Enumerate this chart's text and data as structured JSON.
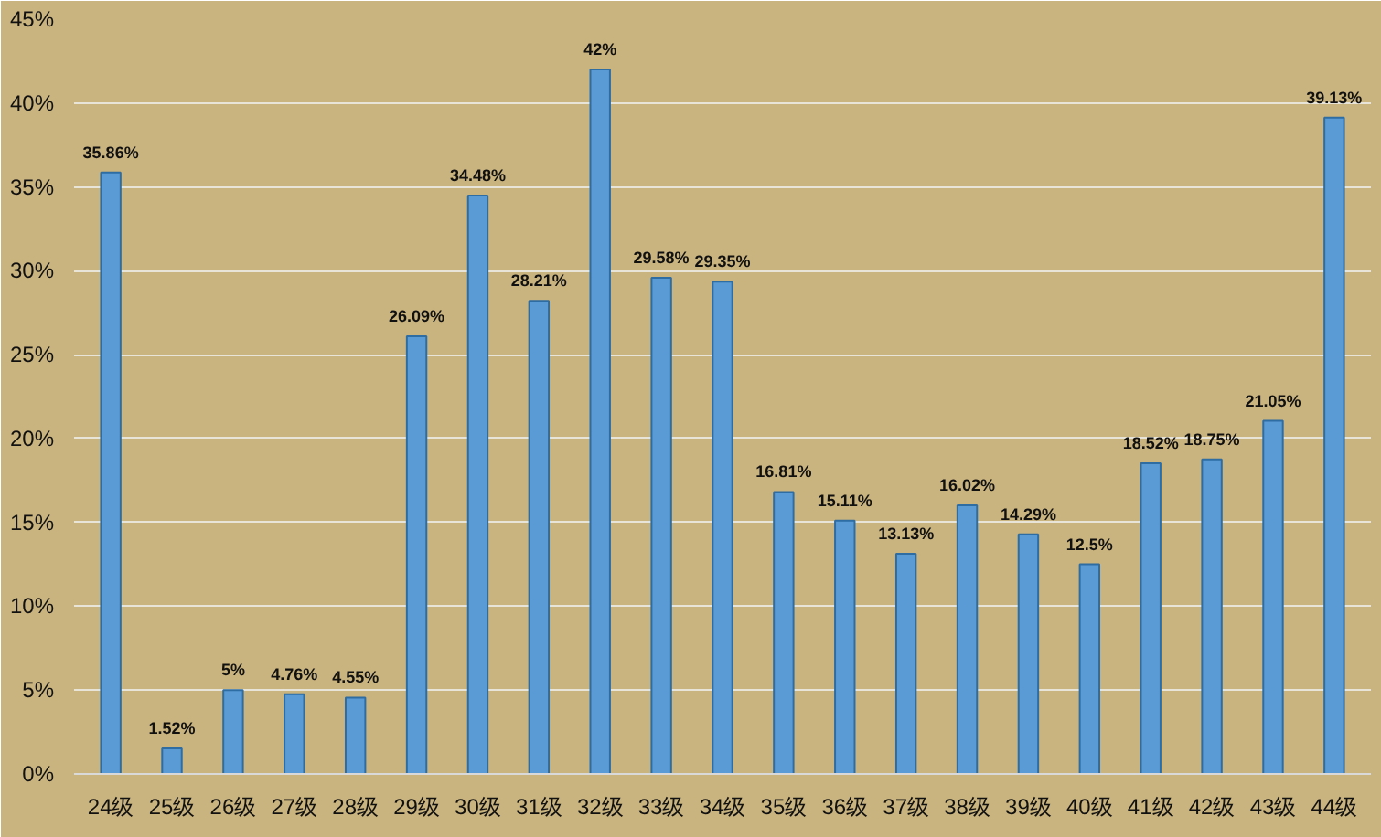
{
  "chart_data": {
    "type": "bar",
    "categories": [
      "24级",
      "25级",
      "26级",
      "27级",
      "28级",
      "29级",
      "30级",
      "31级",
      "32级",
      "33级",
      "34级",
      "35级",
      "36级",
      "37级",
      "38级",
      "39级",
      "40级",
      "41级",
      "42级",
      "43级",
      "44级"
    ],
    "values": [
      35.86,
      1.52,
      5,
      4.76,
      4.55,
      26.09,
      34.48,
      28.21,
      42,
      29.58,
      29.35,
      16.81,
      15.11,
      13.13,
      16.02,
      14.29,
      12.5,
      18.52,
      18.75,
      21.05,
      39.13
    ],
    "value_labels": [
      "35.86%",
      "1.52%",
      "5%",
      "4.76%",
      "4.55%",
      "26.09%",
      "34.48%",
      "28.21%",
      "42%",
      "29.58%",
      "29.35%",
      "16.81%",
      "15.11%",
      "13.13%",
      "16.02%",
      "14.29%",
      "12.5%",
      "18.52%",
      "18.75%",
      "21.05%",
      "39.13%"
    ],
    "color": "#5b9bd5",
    "ylim": [
      0,
      45
    ],
    "yticks": [
      {
        "value": 0,
        "label": "0%"
      },
      {
        "value": 5,
        "label": "5%"
      },
      {
        "value": 10,
        "label": "10%"
      },
      {
        "value": 15,
        "label": "15%"
      },
      {
        "value": 20,
        "label": "20%"
      },
      {
        "value": 25,
        "label": "25%"
      },
      {
        "value": 30,
        "label": "30%"
      },
      {
        "value": 35,
        "label": "35%"
      },
      {
        "value": 40,
        "label": "40%"
      },
      {
        "value": 45,
        "label": "45%"
      }
    ],
    "grid": "y"
  }
}
